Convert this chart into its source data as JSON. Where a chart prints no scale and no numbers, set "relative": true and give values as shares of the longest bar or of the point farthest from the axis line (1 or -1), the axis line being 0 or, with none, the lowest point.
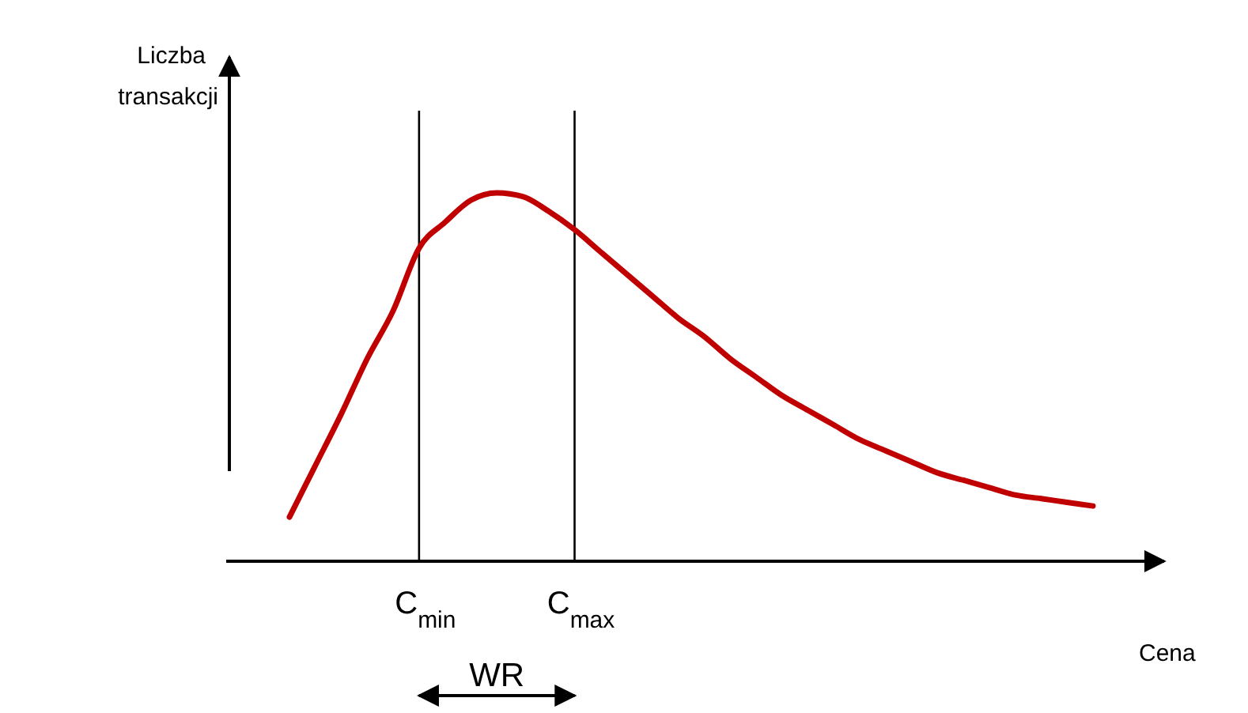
{
  "chart_data": {
    "type": "line",
    "relative": true,
    "xlabel": "Cena",
    "ylabel": "Liczba transakcji",
    "categories": [
      null,
      null,
      null,
      null,
      null,
      "C$_{min}$",
      null,
      null,
      null,
      null,
      null,
      "C$_{max}$",
      null,
      null,
      null,
      null,
      null,
      null,
      null,
      null,
      null,
      null,
      null,
      null,
      null,
      null,
      null,
      null,
      null,
      null,
      null,
      null
    ],
    "series": [
      {
        "color": "#c00000",
        "values": [
          0.12,
          0.26,
          0.4,
          0.55,
          0.68,
          0.85,
          0.92,
          0.98,
          1.0,
          0.99,
          0.95,
          0.9,
          0.84,
          0.78,
          0.72,
          0.66,
          0.61,
          0.55,
          0.5,
          0.45,
          0.41,
          0.37,
          0.33,
          0.3,
          0.27,
          0.24,
          0.22,
          0.2,
          0.18,
          0.17,
          0.16,
          0.15
        ]
      }
    ],
    "ref_lines": [
      {
        "axis": "x",
        "value": "C$_{min}$",
        "color": "#000000"
      },
      {
        "axis": "x",
        "value": "C$_{max}$",
        "color": "#000000"
      }
    ],
    "annotations": [
      "WR"
    ]
  }
}
